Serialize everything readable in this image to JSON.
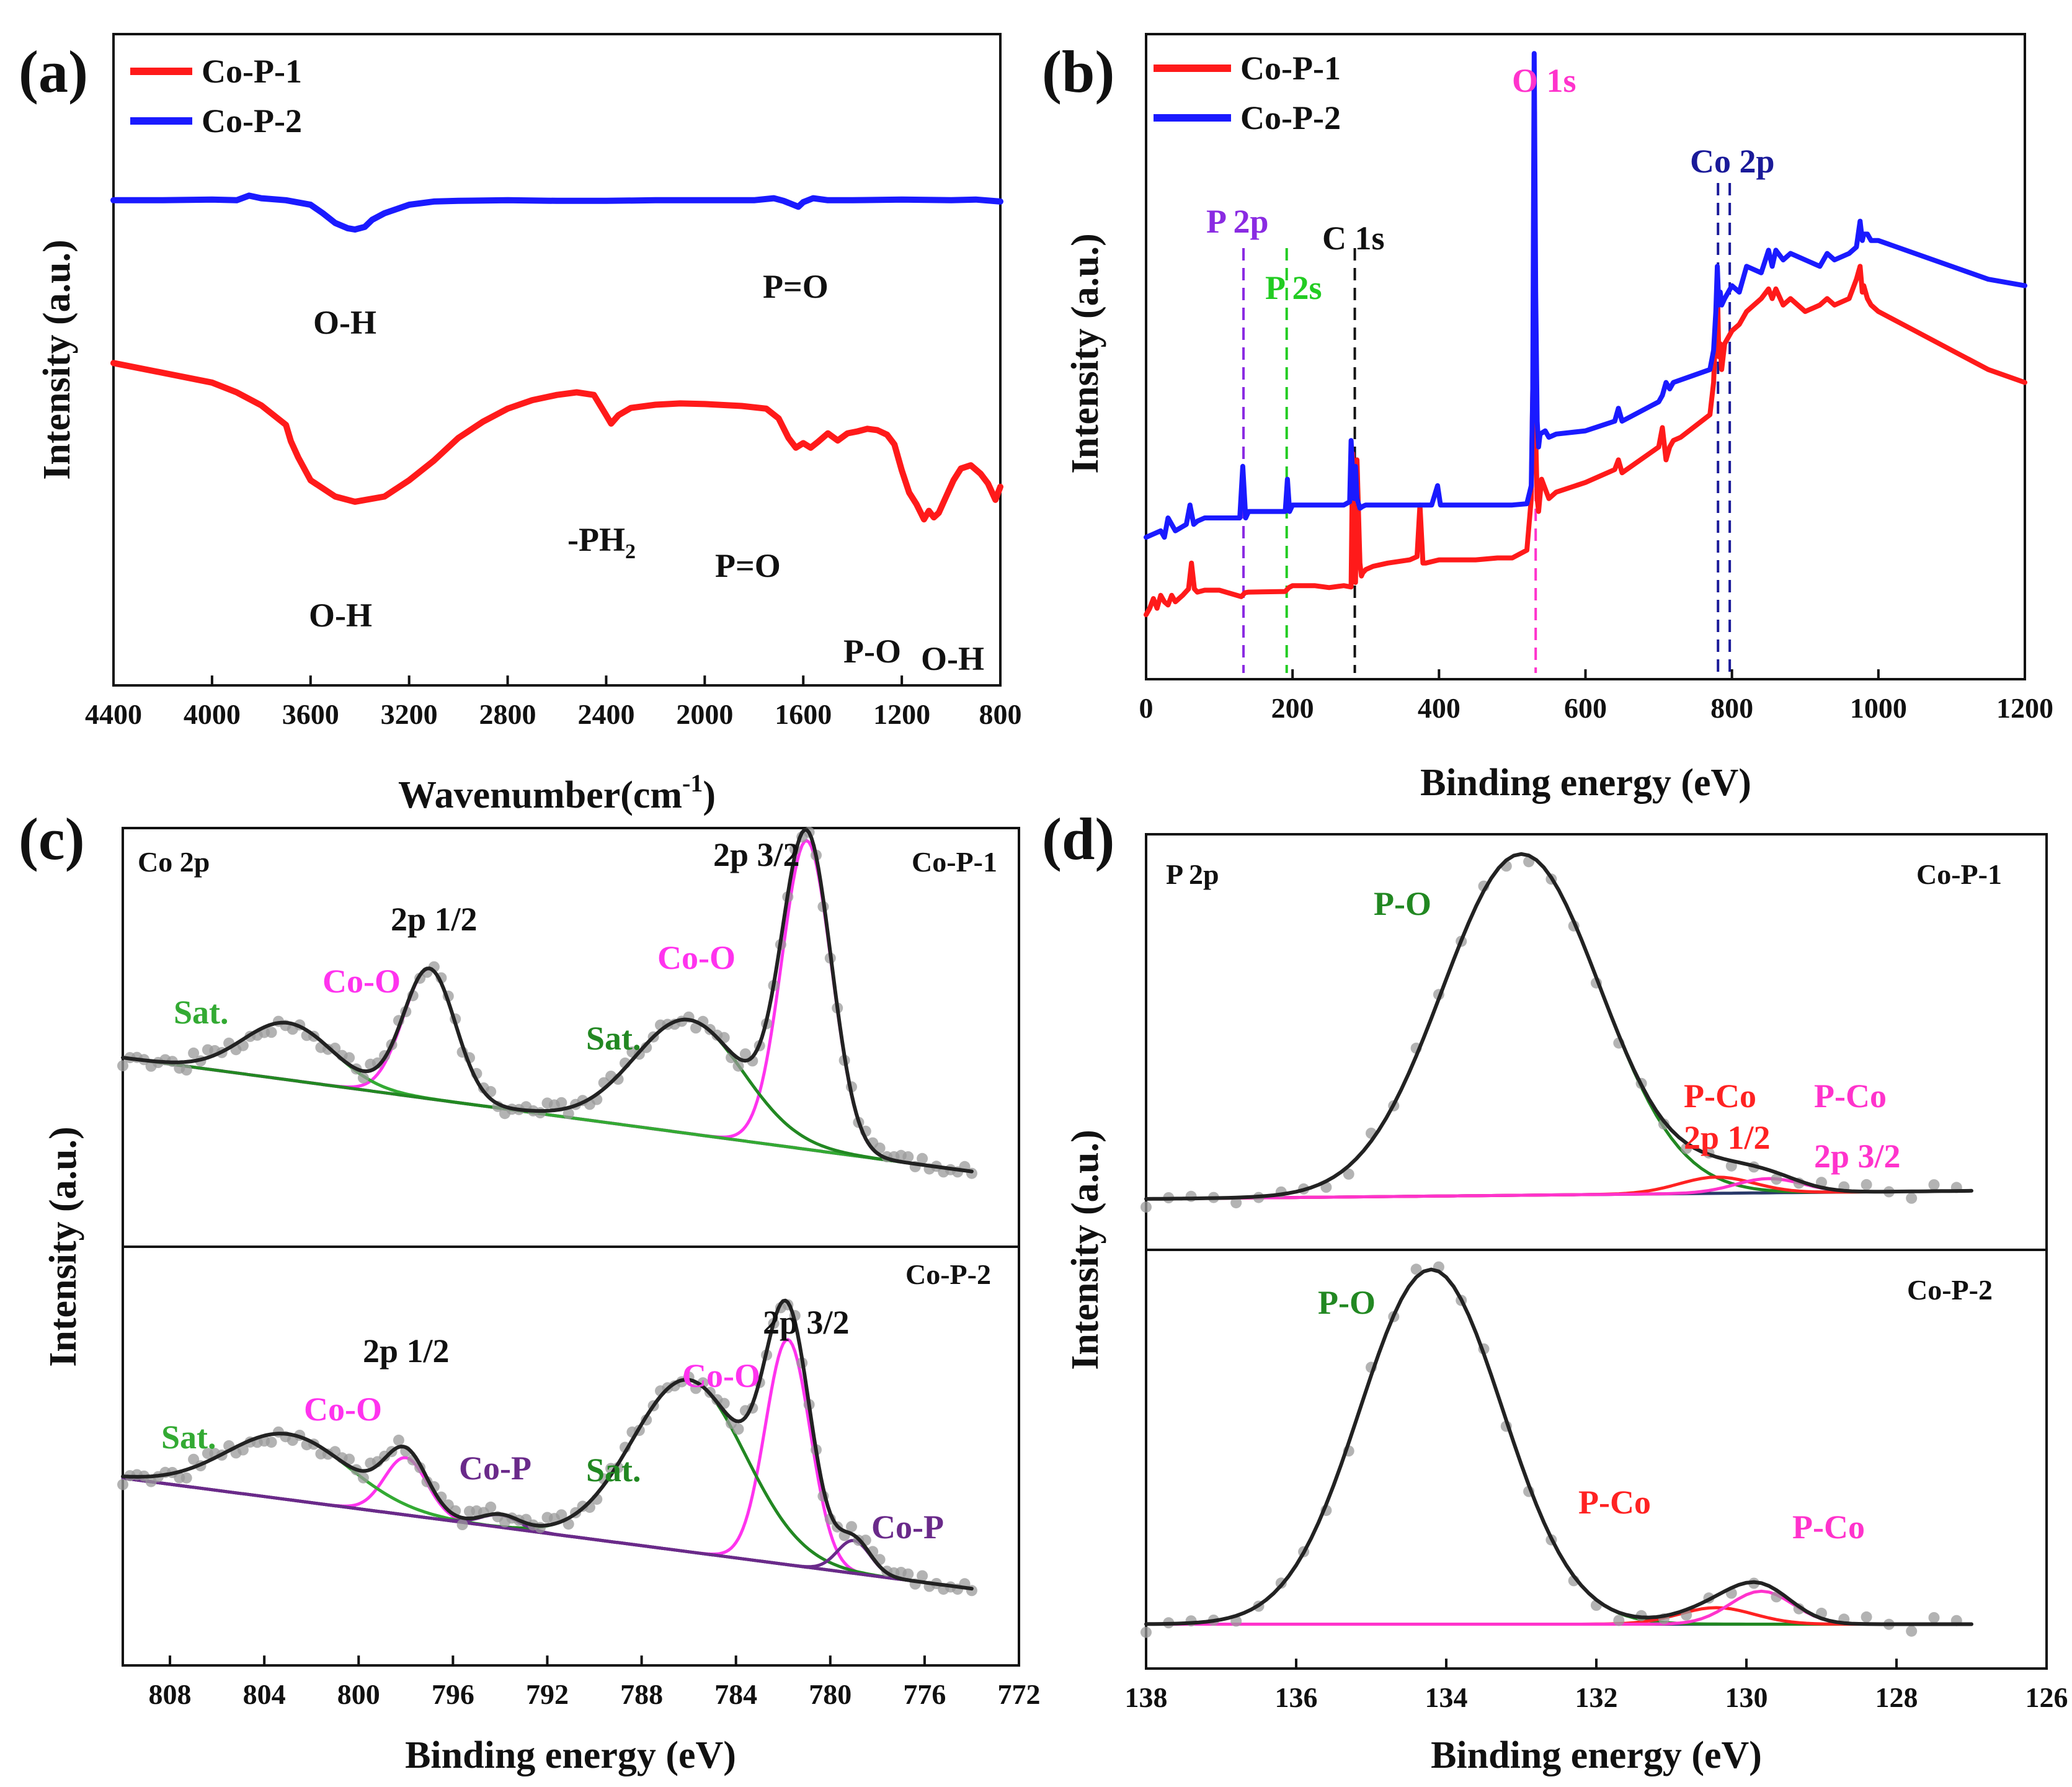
{
  "chart_data": [
    {
      "panel": "(a)",
      "type": "line",
      "xlabel": "Wavenumber(cm-1)",
      "xlabel_main": "Wavenumber(cm",
      "xlabel_sup": "-1",
      "xlabel_close": ")",
      "ylabel": "Intensity (a.u.)",
      "xlim": [
        4400,
        800
      ],
      "ylim": [
        0,
        100
      ],
      "x_ticks": [
        "4400",
        "4000",
        "3600",
        "3200",
        "2800",
        "2400",
        "2000",
        "1600",
        "1200",
        "800"
      ],
      "legend": {
        "position": "top-left"
      },
      "series": [
        {
          "name": "Co-P-1",
          "color": "#ff1a1a",
          "x": [
            4400,
            4200,
            4000,
            3900,
            3800,
            3700,
            3680,
            3650,
            3600,
            3500,
            3420,
            3300,
            3200,
            3100,
            3000,
            2900,
            2800,
            2700,
            2600,
            2520,
            2450,
            2400,
            2380,
            2350,
            2300,
            2200,
            2100,
            2000,
            1850,
            1750,
            1700,
            1660,
            1630,
            1600,
            1570,
            1540,
            1500,
            1460,
            1420,
            1380,
            1340,
            1300,
            1260,
            1230,
            1200,
            1170,
            1140,
            1110,
            1090,
            1070,
            1050,
            1020,
            990,
            960,
            920,
            880,
            850,
            820,
            800
          ],
          "values": [
            49.5,
            48,
            46.5,
            45,
            43,
            40,
            37.5,
            35,
            31.5,
            29,
            28.2,
            29,
            31.5,
            34.5,
            38,
            40.5,
            42.5,
            43.8,
            44.6,
            45,
            44.6,
            41.5,
            40.2,
            41.5,
            42.6,
            43.1,
            43.3,
            43.2,
            42.9,
            42.5,
            41,
            38,
            36.5,
            37.2,
            36.5,
            37.4,
            38.7,
            37.6,
            38.7,
            39,
            39.4,
            39.2,
            38.5,
            37,
            33,
            29.6,
            27.8,
            25.5,
            26.8,
            25.8,
            26.5,
            29,
            31.5,
            33.3,
            33.8,
            32.5,
            31,
            28.5,
            30.5
          ]
        },
        {
          "name": "Co-P-2",
          "color": "#1a1aff",
          "x": [
            4400,
            4200,
            4000,
            3900,
            3850,
            3800,
            3700,
            3600,
            3550,
            3500,
            3450,
            3420,
            3380,
            3350,
            3300,
            3200,
            3100,
            3000,
            2800,
            2600,
            2400,
            2200,
            2000,
            1800,
            1720,
            1680,
            1640,
            1620,
            1600,
            1560,
            1500,
            1400,
            1200,
            1000,
            900,
            800
          ],
          "values": [
            74.5,
            74.5,
            74.6,
            74.5,
            75.2,
            74.8,
            74.5,
            73.8,
            72.5,
            71,
            70.2,
            70,
            70.4,
            71.5,
            72.5,
            73.8,
            74.3,
            74.4,
            74.5,
            74.4,
            74.4,
            74.5,
            74.5,
            74.5,
            74.8,
            74.4,
            73.8,
            73.5,
            74.2,
            74.8,
            74.5,
            74.5,
            74.6,
            74.5,
            74.6,
            74.3
          ]
        }
      ],
      "annotations": {
        "oh_blue": "O-H",
        "po_blue": "P=O",
        "oh_red": "O-H",
        "ph2_main": "-PH",
        "ph2_sub": "2",
        "po_red": "P=O",
        "p_o": "P-O",
        "oh_red2": "O-H"
      }
    },
    {
      "panel": "(b)",
      "type": "line",
      "xlabel": "Binding energy (eV)",
      "ylabel": "Intensity (a.u.)",
      "xlim": [
        0,
        1200
      ],
      "ylim": [
        0,
        100
      ],
      "x_ticks": [
        "0",
        "200",
        "400",
        "600",
        "800",
        "1000",
        "1200"
      ],
      "legend": {
        "position": "top-left"
      },
      "series": [
        {
          "name": "Co-P-1",
          "color": "#ff1a1a",
          "x": [
            0,
            5,
            10,
            15,
            20,
            25,
            30,
            35,
            40,
            50,
            58,
            62,
            66,
            70,
            80,
            100,
            130,
            135,
            140,
            190,
            195,
            200,
            230,
            250,
            270,
            280,
            282,
            284,
            286,
            288,
            292,
            294,
            296,
            300,
            310,
            330,
            360,
            370,
            374,
            378,
            382,
            400,
            420,
            450,
            480,
            500,
            520,
            526,
            528,
            530,
            532,
            534,
            536,
            540,
            550,
            560,
            600,
            640,
            645,
            650,
            700,
            705,
            710,
            715,
            720,
            730,
            770,
            775,
            778,
            780,
            782,
            784,
            786,
            790,
            800,
            810,
            820,
            840,
            850,
            855,
            860,
            870,
            880,
            900,
            920,
            930,
            940,
            960,
            970,
            975,
            978,
            980,
            985,
            990,
            1000,
            1050,
            1100,
            1150,
            1200
          ],
          "values": [
            10,
            11,
            12.5,
            11,
            13,
            12,
            11.5,
            13,
            12,
            13,
            14,
            18,
            14,
            13.5,
            13.8,
            13.8,
            12.8,
            13.4,
            13.5,
            13.6,
            14.2,
            14.5,
            14.5,
            14.2,
            14.5,
            14.3,
            35,
            22,
            15,
            34,
            18,
            16,
            16.5,
            17,
            17.5,
            18,
            18.5,
            19,
            27,
            18,
            18,
            18.5,
            18.5,
            18.5,
            18.8,
            18.8,
            20,
            28,
            45,
            60,
            38,
            28,
            26,
            31,
            28,
            29,
            30.5,
            32.5,
            34,
            32,
            36,
            39,
            34,
            36,
            37,
            37.5,
            41,
            46,
            55,
            62,
            50,
            52,
            48,
            52,
            54,
            55,
            57,
            59,
            60.5,
            59,
            60.5,
            58,
            59,
            57,
            58,
            59,
            58,
            59,
            62,
            64,
            60,
            61,
            59,
            58,
            57,
            54,
            51,
            48,
            46
          ]
        },
        {
          "name": "Co-P-2",
          "color": "#1a1aff",
          "x": [
            0,
            10,
            20,
            25,
            30,
            40,
            55,
            60,
            65,
            70,
            80,
            100,
            128,
            132,
            136,
            140,
            190,
            193,
            196,
            200,
            230,
            250,
            270,
            278,
            280,
            282,
            284,
            286,
            288,
            292,
            296,
            300,
            320,
            360,
            390,
            398,
            402,
            410,
            450,
            480,
            500,
            520,
            526,
            528,
            530,
            532,
            534,
            536,
            538,
            545,
            550,
            560,
            600,
            640,
            645,
            650,
            700,
            705,
            710,
            715,
            720,
            770,
            775,
            778,
            780,
            782,
            784,
            786,
            790,
            800,
            810,
            820,
            840,
            850,
            855,
            860,
            870,
            880,
            900,
            920,
            930,
            940,
            960,
            970,
            975,
            978,
            980,
            985,
            990,
            1000,
            1050,
            1100,
            1150,
            1200
          ],
          "values": [
            22,
            22.5,
            23,
            22,
            25,
            23,
            24,
            27,
            24,
            24.5,
            25,
            25,
            25,
            33,
            25,
            26,
            26,
            31,
            26,
            27,
            27,
            27,
            27,
            27.5,
            37,
            32,
            28,
            33,
            28,
            26.5,
            26.8,
            27,
            27,
            27,
            27,
            30,
            27,
            27,
            27,
            27,
            27,
            27.2,
            30,
            45,
            97,
            60,
            40,
            36,
            38,
            38.5,
            37.5,
            38,
            38.5,
            40,
            42,
            40,
            43,
            44,
            46,
            45,
            46,
            48,
            51,
            57,
            64,
            58,
            60,
            58,
            59,
            61,
            60,
            64,
            63,
            66.5,
            64,
            66.5,
            65,
            66,
            65,
            64,
            66,
            65,
            66,
            67,
            71,
            68,
            69,
            69,
            68,
            68,
            66,
            64,
            62,
            61
          ]
        }
      ],
      "markers": [
        {
          "label": "P 2p",
          "x": 133,
          "color": "#8a2be2"
        },
        {
          "label": "P 2s",
          "x": 192,
          "color": "#22cc22"
        },
        {
          "label": "C 1s",
          "x": 285,
          "color": "#111111"
        },
        {
          "label": "O 1s",
          "x": 532,
          "color": "#ff33cc"
        },
        {
          "label": "Co 2p",
          "x": 781,
          "color": "#1a1a99"
        },
        {
          "label": "",
          "x": 797,
          "color": "#1a1a99"
        }
      ]
    },
    {
      "panel": "(c)",
      "type": "line",
      "xlabel": "Binding energy (eV)",
      "ylabel": "Intensity (a.u.)",
      "xlim": [
        810,
        772
      ],
      "ylim": [
        0,
        100
      ],
      "x_ticks": [
        "808",
        "804",
        "800",
        "796",
        "792",
        "788",
        "784",
        "780",
        "776",
        "772"
      ],
      "subplots": [
        {
          "sample": "Co-P-1",
          "region": "Co 2p",
          "baseline": [
            [
              810,
              45
            ],
            [
              774,
              17
            ]
          ],
          "peaks": [
            {
              "label": "Co-O",
              "center": 797.0,
              "width": 1.1,
              "height": 32,
              "color": "#ff33ee"
            },
            {
              "label": "Co-O",
              "center": 781.0,
              "width": 1.05,
              "height": 76,
              "color": "#ff33ee"
            },
            {
              "label": "Sat.",
              "center": 803.0,
              "width": 1.9,
              "height": 14,
              "color": "#33aa33"
            },
            {
              "label": "Sat.",
              "center": 786.0,
              "width": 2.3,
              "height": 28,
              "color": "#228822"
            }
          ],
          "labels": {
            "region": "Co 2p",
            "sample": "Co-P-1",
            "p12": "2p 1/2",
            "p32": "2p 3/2",
            "coo1": "Co-O",
            "coo2": "Co-O",
            "sat1": "Sat.",
            "sat2": "Sat."
          }
        },
        {
          "sample": "Co-P-2",
          "region": "Co 2p",
          "baseline": [
            [
              810,
              45
            ],
            [
              774,
              18
            ]
          ],
          "peaks": [
            {
              "label": "Co-O",
              "center": 798.0,
              "width": 0.9,
              "height": 14,
              "color": "#ff33ee"
            },
            {
              "label": "Co-O",
              "center": 781.8,
              "width": 0.95,
              "height": 55,
              "color": "#ff33ee"
            },
            {
              "label": "Sat.",
              "center": 803.0,
              "width": 2.6,
              "height": 16,
              "color": "#33aa33"
            },
            {
              "label": "Sat.",
              "center": 786.0,
              "width": 2.4,
              "height": 42,
              "color": "#228822"
            },
            {
              "label": "Co-P",
              "center": 794.0,
              "width": 0.8,
              "height": 3,
              "color": "#6a2a8a"
            },
            {
              "label": "Co-P",
              "center": 779.0,
              "width": 0.7,
              "height": 8,
              "color": "#6a2a8a"
            }
          ],
          "labels": {
            "sample": "Co-P-2",
            "p12": "2p 1/2",
            "p32": "2p 3/2",
            "coo1": "Co-O",
            "coo2": "Co-O",
            "sat1": "Sat.",
            "sat2": "Sat.",
            "cop1": "Co-P",
            "cop2": "Co-P"
          }
        }
      ]
    },
    {
      "panel": "(d)",
      "type": "line",
      "xlabel": "Binding energy (eV)",
      "ylabel": "Intensity (a.u.)",
      "xlim": [
        138,
        126
      ],
      "ylim": [
        0,
        100
      ],
      "x_ticks": [
        "138",
        "136",
        "134",
        "132",
        "130",
        "128",
        "126"
      ],
      "subplots": [
        {
          "sample": "Co-P-1",
          "region": "P 2p",
          "baseline": [
            [
              138,
              11
            ],
            [
              127,
              13
            ]
          ],
          "peaks": [
            {
              "label": "P-O",
              "center": 133.0,
              "width": 1.05,
              "height": 84,
              "color": "#228822"
            },
            {
              "label": "P-Co 2p 1/2",
              "center": 130.4,
              "width": 0.5,
              "height": 4,
              "color": "#ff2222"
            },
            {
              "label": "P-Co 2p 3/2",
              "center": 129.7,
              "width": 0.45,
              "height": 3.5,
              "color": "#ff33cc"
            }
          ],
          "labels": {
            "region": "P 2p",
            "sample": "Co-P-1",
            "po": "P-O",
            "pco1": "P-Co",
            "pco1b": "2p 1/2",
            "pco2": "P-Co",
            "pco2b": "2p 3/2"
          }
        },
        {
          "sample": "Co-P-2",
          "region": "P 2p",
          "baseline": [
            [
              138,
              10
            ],
            [
              127,
              10
            ]
          ],
          "peaks": [
            {
              "label": "P-O",
              "center": 134.2,
              "width": 0.95,
              "height": 86,
              "color": "#228822"
            },
            {
              "label": "P-Co",
              "center": 130.4,
              "width": 0.5,
              "height": 4,
              "color": "#ff2222"
            },
            {
              "label": "P-Co",
              "center": 129.8,
              "width": 0.42,
              "height": 8,
              "color": "#ff33cc"
            }
          ],
          "labels": {
            "sample": "Co-P-2",
            "po": "P-O",
            "pco1": "P-Co",
            "pco2": "P-Co"
          }
        }
      ]
    }
  ]
}
